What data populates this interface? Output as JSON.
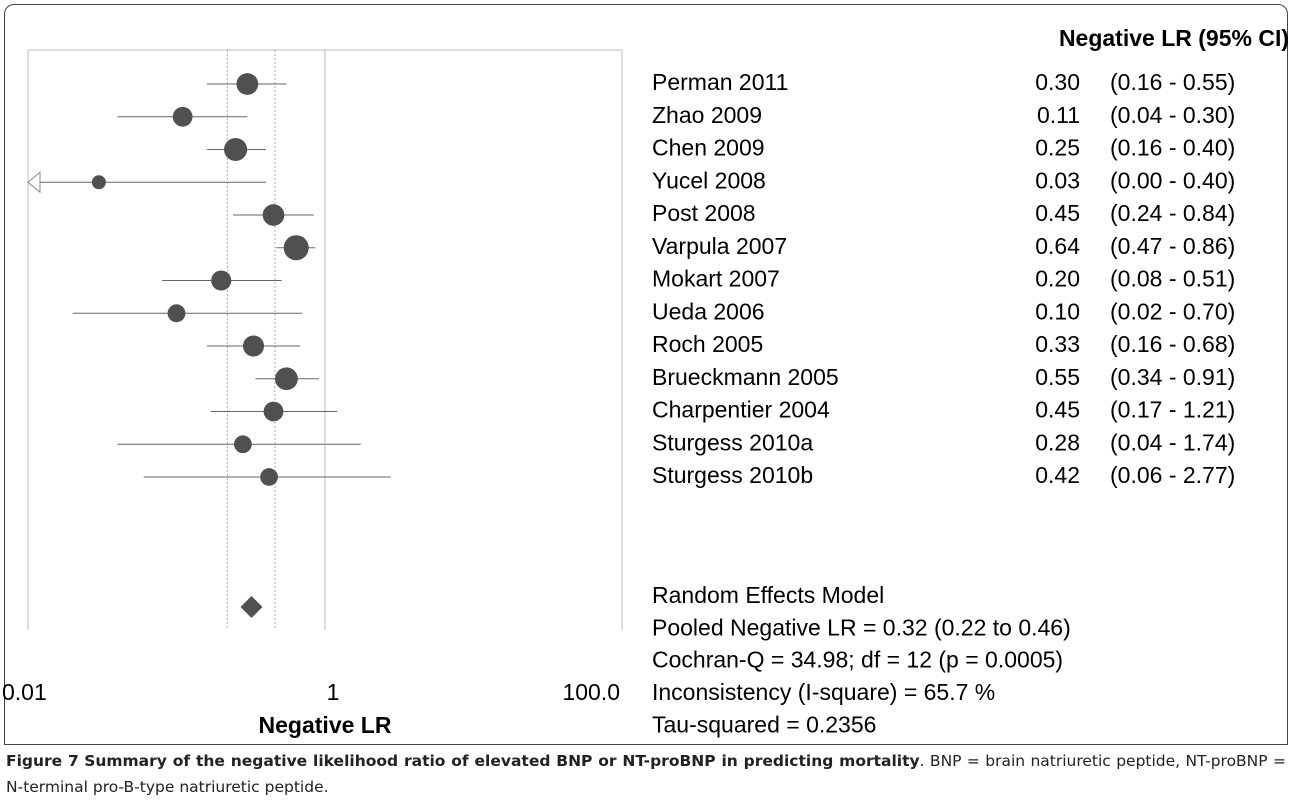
{
  "chart_data": {
    "type": "forest",
    "table_header": "Negative LR (95% CI)",
    "xlabel": "Negative LR",
    "xscale": "log",
    "xlim": [
      0.01,
      100
    ],
    "xticks": [
      {
        "value": 0.01,
        "label": "0.01"
      },
      1,
      {
        "value": 100,
        "label": "100.0"
      }
    ],
    "color": "#505050",
    "categories": [
      "Perman 2011",
      "Zhao 2009",
      "Chen 2009",
      "Yucel 2008",
      "Post 2008",
      "Varpula 2007",
      "Mokart 2007",
      "Ueda 2006",
      "Roch 2005",
      "Brueckmann 2005",
      "Charpentier 2004",
      "Sturgess 2010a",
      "Sturgess 2010b"
    ],
    "values": [
      0.3,
      0.11,
      0.25,
      0.03,
      0.45,
      0.64,
      0.2,
      0.1,
      0.33,
      0.55,
      0.45,
      0.28,
      0.42
    ],
    "value_labels": [
      "0.30",
      "0.11",
      "0.25",
      "0.03",
      "0.45",
      "0.64",
      "0.20",
      "0.10",
      "0.33",
      "0.55",
      "0.45",
      "0.28",
      "0.42"
    ],
    "lower": [
      0.16,
      0.04,
      0.16,
      0,
      0.24,
      0.47,
      0.08,
      0.02,
      0.16,
      0.34,
      0.17,
      0.04,
      0.06
    ],
    "upper": [
      0.55,
      0.3,
      0.4,
      0.4,
      0.84,
      0.86,
      0.51,
      0.7,
      0.68,
      0.91,
      1.21,
      1.74,
      2.77
    ],
    "ci_labels": [
      "(0.16 - 0.55)",
      "(0.04 - 0.30)",
      "(0.16 - 0.40)",
      "(0.00 - 0.40)",
      "(0.24 - 0.84)",
      "(0.47 - 0.86)",
      "(0.08 - 0.51)",
      "(0.02 - 0.70)",
      "(0.16 - 0.68)",
      "(0.34 - 0.91)",
      "(0.17 - 1.21)",
      "(0.04 - 1.74)",
      "(0.06 - 2.77)"
    ],
    "pooled": {
      "value": 0.32,
      "lower": 0.22,
      "upper": 0.46
    },
    "summary": [
      "Random Effects Model",
      "Pooled Negative LR = 0.32 (0.22 to 0.46)",
      "Cochran-Q = 34.98; df =  12 (p = 0.0005)",
      "Inconsistency (I-square) = 65.7 %",
      "Tau-squared = 0.2356"
    ]
  },
  "caption": {
    "label": "Figure 7",
    "title": "Summary of the negative likelihood ratio of elevated BNP or NT-proBNP in predicting mortality",
    "text": ". BNP = brain natriuretic peptide, NT-proBNP = N-terminal pro-B-type natriuretic peptide."
  }
}
